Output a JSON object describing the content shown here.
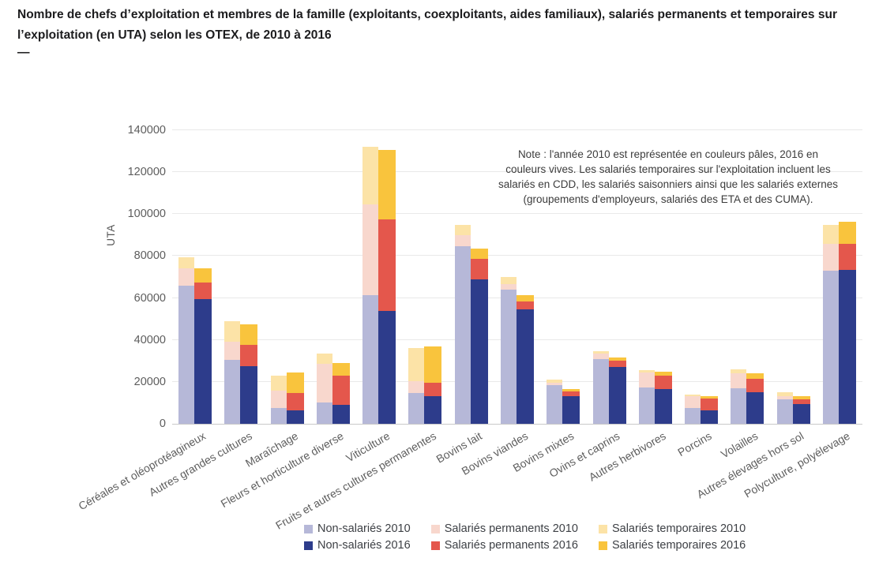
{
  "header": {
    "title": "Nombre de chefs d’exploitation et membres de la famille (exploitants, coexploitants, aides familiaux), salariés permanents et temporaires sur l’exploitation (en UTA) selon les OTEX, de 2010 à 2016",
    "dash": "—"
  },
  "chart_data": {
    "type": "bar",
    "stacked": true,
    "title": "",
    "xlabel": "",
    "ylabel": "UTA",
    "ylim": [
      0,
      140000
    ],
    "yticks": [
      0,
      20000,
      40000,
      60000,
      80000,
      100000,
      120000,
      140000
    ],
    "grid": true,
    "legend_position": "bottom",
    "note": "Note : l'année 2010 est représentée en couleurs pâles, 2016 en couleurs vives. Les salariés temporaires sur l'exploitation incluent les salariés en CDD, les salariés saisonniers ainsi que les salariés externes (groupements d'employeurs, salariés des ETA et des CUMA).",
    "note_position": "upper-right",
    "categories": [
      "Céréales et oléoprotéagineux",
      "Autres grandes cultures",
      "Maraîchage",
      "Fleurs et horticulture diverse",
      "Viticulture",
      "Fruits et autres cultures permanentes",
      "Bovins lait",
      "Bovins viandes",
      "Bovins mixtes",
      "Ovins et caprins",
      "Autres herbivores",
      "Porcins",
      "Volailles",
      "Autres élevages hors sol",
      "Polyculture, polyélevage"
    ],
    "stacks": [
      "2010",
      "2016"
    ],
    "series": [
      {
        "name": "Non-salariés 2010",
        "stack": "2010",
        "color": "#b6b8d8",
        "values": [
          66000,
          30500,
          7500,
          10000,
          61500,
          14500,
          84500,
          64000,
          18500,
          31000,
          17500,
          7500,
          17000,
          11500,
          73000
        ]
      },
      {
        "name": "Salariés permanents 2010",
        "stack": "2010",
        "color": "#f8d7cd",
        "values": [
          8000,
          8500,
          8500,
          18500,
          43000,
          6000,
          5500,
          2500,
          1000,
          2500,
          7000,
          5500,
          7000,
          1500,
          13000
        ]
      },
      {
        "name": "Salariés temporaires 2010",
        "stack": "2010",
        "color": "#fce3a7",
        "values": [
          5500,
          10000,
          7000,
          5000,
          27500,
          15500,
          5000,
          3500,
          1500,
          1000,
          1000,
          1000,
          2000,
          2000,
          9000
        ]
      },
      {
        "name": "Non-salariés 2016",
        "stack": "2016",
        "color": "#2d3c8b",
        "values": [
          59500,
          27500,
          6500,
          9000,
          54000,
          13000,
          69000,
          54500,
          13000,
          27000,
          16500,
          6500,
          15000,
          9500,
          73500
        ]
      },
      {
        "name": "Salariés permanents 2016",
        "stack": "2016",
        "color": "#e4574c",
        "values": [
          8000,
          10000,
          8000,
          14000,
          43500,
          6500,
          9500,
          4000,
          2500,
          3000,
          6500,
          5500,
          6500,
          2000,
          12500
        ]
      },
      {
        "name": "Salariés temporaires 2016",
        "stack": "2016",
        "color": "#f9c43d",
        "values": [
          6500,
          10000,
          10000,
          6000,
          33000,
          17500,
          5000,
          3000,
          1000,
          1500,
          2000,
          1000,
          2500,
          1500,
          10500
        ]
      }
    ]
  }
}
